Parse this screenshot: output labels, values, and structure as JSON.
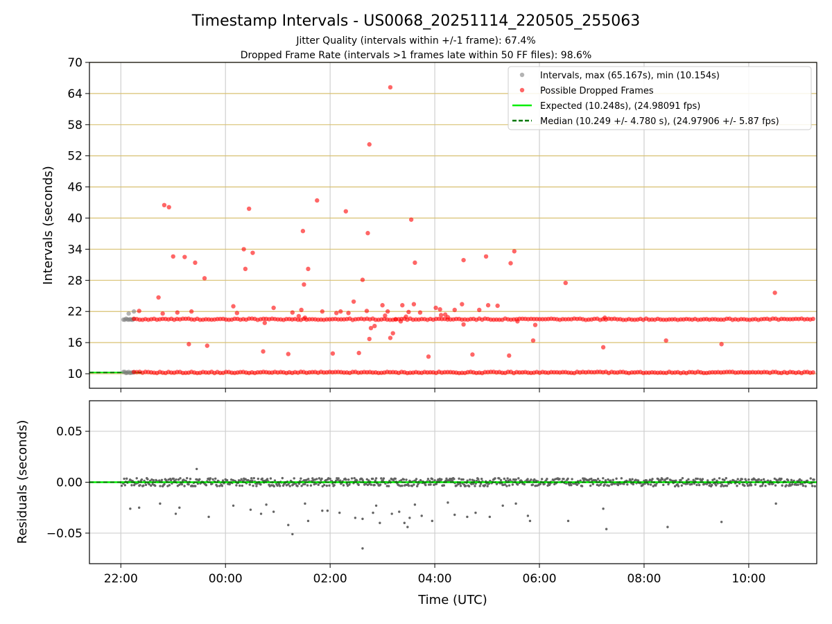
{
  "chart_data": [
    {
      "type": "scatter",
      "title": "Timestamp Intervals - US0068_20251114_220505_255063",
      "subtitles": [
        "Jitter Quality (intervals within +/-1 frame): 67.4%",
        "Dropped Frame Rate (intervals >1 frames late within 50 FF files): 98.6%"
      ],
      "xlabel": "",
      "ylabel": "Intervals (seconds)",
      "xlim_hours": [
        -0.6,
        13.3
      ],
      "ylim": [
        7.2,
        70
      ],
      "yticks": [
        10,
        16,
        22,
        28,
        34,
        40,
        46,
        52,
        58,
        64,
        70
      ],
      "ytick_labels": [
        "10",
        "16",
        "22",
        "28",
        "34",
        "40",
        "46",
        "52",
        "58",
        "64",
        "70"
      ],
      "xticks_hours": [
        0,
        2,
        4,
        6,
        8,
        10,
        12
      ],
      "xtick_labels": [
        "22:00",
        "00:00",
        "02:00",
        "04:00",
        "06:00",
        "08:00",
        "10:00"
      ],
      "grid": true,
      "horizontal_guide_color": "#d8c071",
      "legend": {
        "placement": "top-right",
        "entries": [
          {
            "label": "Intervals, max (65.167s), min (10.154s)",
            "kind": "marker",
            "color": "#808080"
          },
          {
            "label": "Possible Dropped Frames",
            "kind": "marker",
            "color": "#ff0000"
          },
          {
            "label": "Expected (10.248s), (24.98091 fps)",
            "kind": "line",
            "color": "#00ee00"
          },
          {
            "label": "Median (10.249 +/- 4.780 s), (24.97906 +/- 5.87 fps)",
            "kind": "dashed",
            "color": "#007700"
          }
        ]
      },
      "expected_interval": 10.248,
      "median_interval": 10.249,
      "series": [
        {
          "name": "Intervals",
          "color": "#808080",
          "bands": [
            {
              "x_start": 0.05,
              "x_end": 0.25,
              "y": 10.25
            },
            {
              "x_start": 0.05,
              "x_end": 0.25,
              "y": 20.5
            }
          ],
          "points": [
            [
              0.15,
              21.6
            ],
            [
              0.25,
              22.0
            ]
          ]
        },
        {
          "name": "Possible Dropped Frames",
          "color": "#ff0000",
          "bands": [
            {
              "x_start": 0.25,
              "x_end": 13.3,
              "y": 10.25
            },
            {
              "x_start": 0.25,
              "x_end": 13.3,
              "y": 20.5
            }
          ],
          "points": [
            [
              0.35,
              22.1
            ],
            [
              0.72,
              24.7
            ],
            [
              0.8,
              21.6
            ],
            [
              0.83,
              42.5
            ],
            [
              0.92,
              42.1
            ],
            [
              1.0,
              32.6
            ],
            [
              1.08,
              21.8
            ],
            [
              1.22,
              32.5
            ],
            [
              1.3,
              15.7
            ],
            [
              1.35,
              22.0
            ],
            [
              1.42,
              31.4
            ],
            [
              1.6,
              28.4
            ],
            [
              1.65,
              15.4
            ],
            [
              2.15,
              23.0
            ],
            [
              2.22,
              21.7
            ],
            [
              2.35,
              34.0
            ],
            [
              2.38,
              30.2
            ],
            [
              2.45,
              41.8
            ],
            [
              2.52,
              33.3
            ],
            [
              2.72,
              14.3
            ],
            [
              2.75,
              19.8
            ],
            [
              2.92,
              22.7
            ],
            [
              3.2,
              13.8
            ],
            [
              3.28,
              21.8
            ],
            [
              3.4,
              21.1
            ],
            [
              3.45,
              22.3
            ],
            [
              3.48,
              37.5
            ],
            [
              3.5,
              27.2
            ],
            [
              3.52,
              20.8
            ],
            [
              3.58,
              30.2
            ],
            [
              3.75,
              43.4
            ],
            [
              3.85,
              22.0
            ],
            [
              4.05,
              13.9
            ],
            [
              4.12,
              21.7
            ],
            [
              4.2,
              22.0
            ],
            [
              4.3,
              41.3
            ],
            [
              4.35,
              21.7
            ],
            [
              4.45,
              23.9
            ],
            [
              4.55,
              14.0
            ],
            [
              4.62,
              28.1
            ],
            [
              4.7,
              22.1
            ],
            [
              4.72,
              37.1
            ],
            [
              4.75,
              16.7
            ],
            [
              4.78,
              18.8
            ],
            [
              4.85,
              19.2
            ],
            [
              4.75,
              54.2
            ],
            [
              5.0,
              23.2
            ],
            [
              5.05,
              21.2
            ],
            [
              5.1,
              22.0
            ],
            [
              5.15,
              16.9
            ],
            [
              5.2,
              17.8
            ],
            [
              5.25,
              20.5
            ],
            [
              5.15,
              65.2
            ],
            [
              5.35,
              20.1
            ],
            [
              5.38,
              23.2
            ],
            [
              5.45,
              21.0
            ],
            [
              5.5,
              21.9
            ],
            [
              5.55,
              39.7
            ],
            [
              5.6,
              23.4
            ],
            [
              5.62,
              31.4
            ],
            [
              5.72,
              21.8
            ],
            [
              5.88,
              13.3
            ],
            [
              6.02,
              22.7
            ],
            [
              6.1,
              22.4
            ],
            [
              6.12,
              21.3
            ],
            [
              6.2,
              21.4
            ],
            [
              6.25,
              20.9
            ],
            [
              6.38,
              22.3
            ],
            [
              6.52,
              23.4
            ],
            [
              6.55,
              19.5
            ],
            [
              6.55,
              31.9
            ],
            [
              6.72,
              13.7
            ],
            [
              6.85,
              22.3
            ],
            [
              6.98,
              32.6
            ],
            [
              7.02,
              23.2
            ],
            [
              7.2,
              23.1
            ],
            [
              7.42,
              13.5
            ],
            [
              7.45,
              31.3
            ],
            [
              7.52,
              33.6
            ],
            [
              7.58,
              20.1
            ],
            [
              7.88,
              16.4
            ],
            [
              7.92,
              19.4
            ],
            [
              8.5,
              27.5
            ],
            [
              9.22,
              15.1
            ],
            [
              9.25,
              20.8
            ],
            [
              10.42,
              16.4
            ],
            [
              11.48,
              15.7
            ],
            [
              12.5,
              25.6
            ]
          ]
        }
      ]
    },
    {
      "type": "scatter",
      "title": "",
      "xlabel": "Time (UTC)",
      "ylabel": "Residuals (seconds)",
      "xlim_hours": [
        -0.6,
        13.3
      ],
      "ylim": [
        -0.08,
        0.08
      ],
      "yticks": [
        -0.05,
        0.0,
        0.05
      ],
      "ytick_labels": [
        "−0.05",
        "0.00",
        "0.05"
      ],
      "xticks_hours": [
        0,
        2,
        4,
        6,
        8,
        10,
        12
      ],
      "xtick_labels": [
        "22:00",
        "00:00",
        "02:00",
        "04:00",
        "06:00",
        "08:00",
        "10:00"
      ],
      "grid": true,
      "zero_line_color": "#00ee00",
      "median_line_color": "#007700",
      "series": [
        {
          "name": "Residuals",
          "color": "#646464",
          "band": {
            "x_start": 0.0,
            "x_end": 13.3,
            "center": 0.0,
            "spread": 0.004
          },
          "points": [
            [
              0.18,
              -0.026
            ],
            [
              0.35,
              -0.025
            ],
            [
              0.75,
              -0.021
            ],
            [
              1.05,
              -0.031
            ],
            [
              1.12,
              -0.025
            ],
            [
              1.45,
              0.013
            ],
            [
              1.68,
              -0.034
            ],
            [
              2.15,
              -0.023
            ],
            [
              2.48,
              -0.027
            ],
            [
              2.68,
              -0.031
            ],
            [
              2.78,
              -0.022
            ],
            [
              2.92,
              -0.029
            ],
            [
              3.2,
              -0.042
            ],
            [
              3.28,
              -0.051
            ],
            [
              3.52,
              -0.021
            ],
            [
              3.58,
              -0.038
            ],
            [
              3.85,
              -0.028
            ],
            [
              3.95,
              -0.028
            ],
            [
              4.18,
              -0.03
            ],
            [
              4.48,
              -0.035
            ],
            [
              4.62,
              -0.036
            ],
            [
              4.62,
              -0.065
            ],
            [
              4.82,
              -0.03
            ],
            [
              4.88,
              -0.023
            ],
            [
              4.95,
              -0.04
            ],
            [
              5.18,
              -0.031
            ],
            [
              5.32,
              -0.029
            ],
            [
              5.42,
              -0.04
            ],
            [
              5.48,
              -0.044
            ],
            [
              5.52,
              -0.035
            ],
            [
              5.62,
              -0.022
            ],
            [
              5.75,
              -0.033
            ],
            [
              5.95,
              -0.038
            ],
            [
              6.25,
              -0.02
            ],
            [
              6.38,
              -0.032
            ],
            [
              6.62,
              -0.034
            ],
            [
              6.78,
              -0.03
            ],
            [
              7.05,
              -0.034
            ],
            [
              7.3,
              -0.023
            ],
            [
              7.55,
              -0.021
            ],
            [
              7.78,
              -0.033
            ],
            [
              7.82,
              -0.038
            ],
            [
              8.55,
              -0.038
            ],
            [
              9.22,
              -0.026
            ],
            [
              9.28,
              -0.046
            ],
            [
              10.45,
              -0.044
            ],
            [
              11.48,
              -0.039
            ],
            [
              12.52,
              -0.021
            ]
          ]
        }
      ]
    }
  ]
}
